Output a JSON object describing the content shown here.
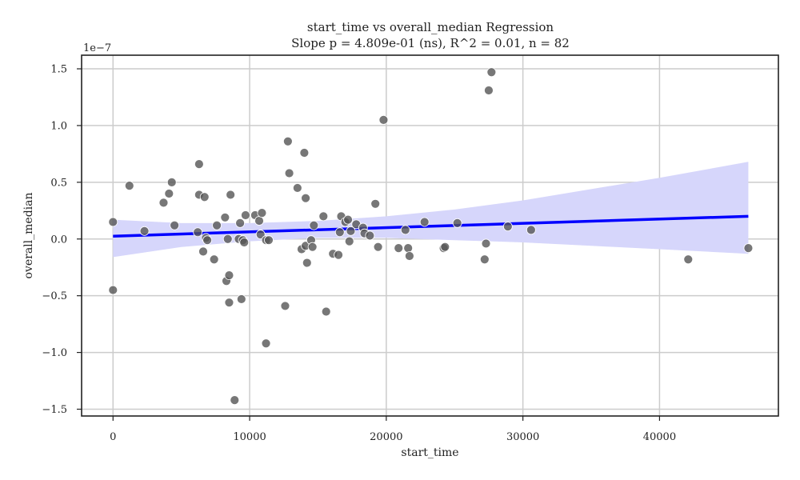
{
  "chart_data": {
    "type": "scatter",
    "title": "start_time vs overall_median Regression",
    "subtitle": "Slope p = 4.809e-01 (ns), R^2 = 0.01, n = 82",
    "xlabel": "start_time",
    "ylabel": "overall_median",
    "y_scale_label": "1e−7",
    "y_scale_factor": 1e-07,
    "xlim": [
      -2300,
      48700
    ],
    "ylim": [
      -1.56,
      1.62
    ],
    "xticks": [
      0,
      10000,
      20000,
      30000,
      40000
    ],
    "xtick_labels": [
      "0",
      "10000",
      "20000",
      "30000",
      "40000"
    ],
    "yticks": [
      -1.5,
      -1.0,
      -0.5,
      0.0,
      0.5,
      1.0,
      1.5
    ],
    "ytick_labels": [
      "−1.5",
      "−1.0",
      "−0.5",
      "0.0",
      "0.5",
      "1.0",
      "1.5"
    ],
    "grid": true,
    "colors": {
      "points": "#555555",
      "line": "#0000ff",
      "band": "#d6d6fb"
    },
    "points": [
      {
        "x": 0,
        "y": 0.15
      },
      {
        "x": 0,
        "y": -0.45
      },
      {
        "x": 1200,
        "y": 0.47
      },
      {
        "x": 2300,
        "y": 0.07
      },
      {
        "x": 3700,
        "y": 0.32
      },
      {
        "x": 4100,
        "y": 0.4
      },
      {
        "x": 4300,
        "y": 0.5
      },
      {
        "x": 4500,
        "y": 0.12
      },
      {
        "x": 6200,
        "y": 0.06
      },
      {
        "x": 6300,
        "y": 0.39
      },
      {
        "x": 6300,
        "y": 0.66
      },
      {
        "x": 6600,
        "y": -0.11
      },
      {
        "x": 6700,
        "y": 0.37
      },
      {
        "x": 6800,
        "y": 0.01
      },
      {
        "x": 6900,
        "y": -0.01
      },
      {
        "x": 7400,
        "y": -0.18
      },
      {
        "x": 7600,
        "y": 0.12
      },
      {
        "x": 8200,
        "y": 0.19
      },
      {
        "x": 8300,
        "y": -0.37
      },
      {
        "x": 8400,
        "y": 0.0
      },
      {
        "x": 8500,
        "y": -0.56
      },
      {
        "x": 8500,
        "y": -0.32
      },
      {
        "x": 8600,
        "y": 0.39
      },
      {
        "x": 8900,
        "y": -1.42
      },
      {
        "x": 9200,
        "y": 0.0
      },
      {
        "x": 9300,
        "y": 0.14
      },
      {
        "x": 9400,
        "y": -0.53
      },
      {
        "x": 9500,
        "y": -0.01
      },
      {
        "x": 9600,
        "y": -0.03
      },
      {
        "x": 9700,
        "y": 0.21
      },
      {
        "x": 10400,
        "y": 0.21
      },
      {
        "x": 10700,
        "y": 0.16
      },
      {
        "x": 10800,
        "y": 0.04
      },
      {
        "x": 10900,
        "y": 0.23
      },
      {
        "x": 11200,
        "y": -0.01
      },
      {
        "x": 11200,
        "y": -0.92
      },
      {
        "x": 11400,
        "y": -0.01
      },
      {
        "x": 12600,
        "y": -0.59
      },
      {
        "x": 12800,
        "y": 0.86
      },
      {
        "x": 12900,
        "y": 0.58
      },
      {
        "x": 13500,
        "y": 0.45
      },
      {
        "x": 13800,
        "y": -0.09
      },
      {
        "x": 14000,
        "y": 0.76
      },
      {
        "x": 14100,
        "y": 0.36
      },
      {
        "x": 14100,
        "y": -0.06
      },
      {
        "x": 14200,
        "y": -0.21
      },
      {
        "x": 14500,
        "y": -0.01
      },
      {
        "x": 14600,
        "y": -0.07
      },
      {
        "x": 14700,
        "y": 0.12
      },
      {
        "x": 15400,
        "y": 0.2
      },
      {
        "x": 15600,
        "y": -0.64
      },
      {
        "x": 16100,
        "y": -0.13
      },
      {
        "x": 16500,
        "y": -0.14
      },
      {
        "x": 16600,
        "y": 0.06
      },
      {
        "x": 16700,
        "y": 0.2
      },
      {
        "x": 17000,
        "y": 0.15
      },
      {
        "x": 17200,
        "y": 0.17
      },
      {
        "x": 17300,
        "y": -0.02
      },
      {
        "x": 17400,
        "y": 0.07
      },
      {
        "x": 17800,
        "y": 0.13
      },
      {
        "x": 18300,
        "y": 0.1
      },
      {
        "x": 18400,
        "y": 0.05
      },
      {
        "x": 18800,
        "y": 0.03
      },
      {
        "x": 19200,
        "y": 0.31
      },
      {
        "x": 19400,
        "y": -0.07
      },
      {
        "x": 19800,
        "y": 1.05
      },
      {
        "x": 20900,
        "y": -0.08
      },
      {
        "x": 21400,
        "y": 0.08
      },
      {
        "x": 21600,
        "y": -0.08
      },
      {
        "x": 21700,
        "y": -0.15
      },
      {
        "x": 22800,
        "y": 0.15
      },
      {
        "x": 24200,
        "y": -0.08
      },
      {
        "x": 24300,
        "y": -0.07
      },
      {
        "x": 25200,
        "y": 0.14
      },
      {
        "x": 27200,
        "y": -0.18
      },
      {
        "x": 27300,
        "y": -0.04
      },
      {
        "x": 27500,
        "y": 1.31
      },
      {
        "x": 27700,
        "y": 1.47
      },
      {
        "x": 28900,
        "y": 0.11
      },
      {
        "x": 30600,
        "y": 0.08
      },
      {
        "x": 42100,
        "y": -0.18
      },
      {
        "x": 46500,
        "y": -0.08
      }
    ],
    "regression": {
      "x": [
        0,
        46500
      ],
      "y": [
        0.025,
        0.2
      ]
    },
    "confidence_band": {
      "x": [
        0,
        5000,
        10000,
        15000,
        20000,
        25000,
        30000,
        35000,
        40000,
        46500
      ],
      "upper": [
        0.17,
        0.14,
        0.14,
        0.16,
        0.2,
        0.26,
        0.34,
        0.44,
        0.54,
        0.68
      ],
      "lower": [
        -0.16,
        -0.07,
        -0.02,
        0.01,
        0.01,
        -0.01,
        -0.03,
        -0.06,
        -0.09,
        -0.13
      ]
    }
  }
}
